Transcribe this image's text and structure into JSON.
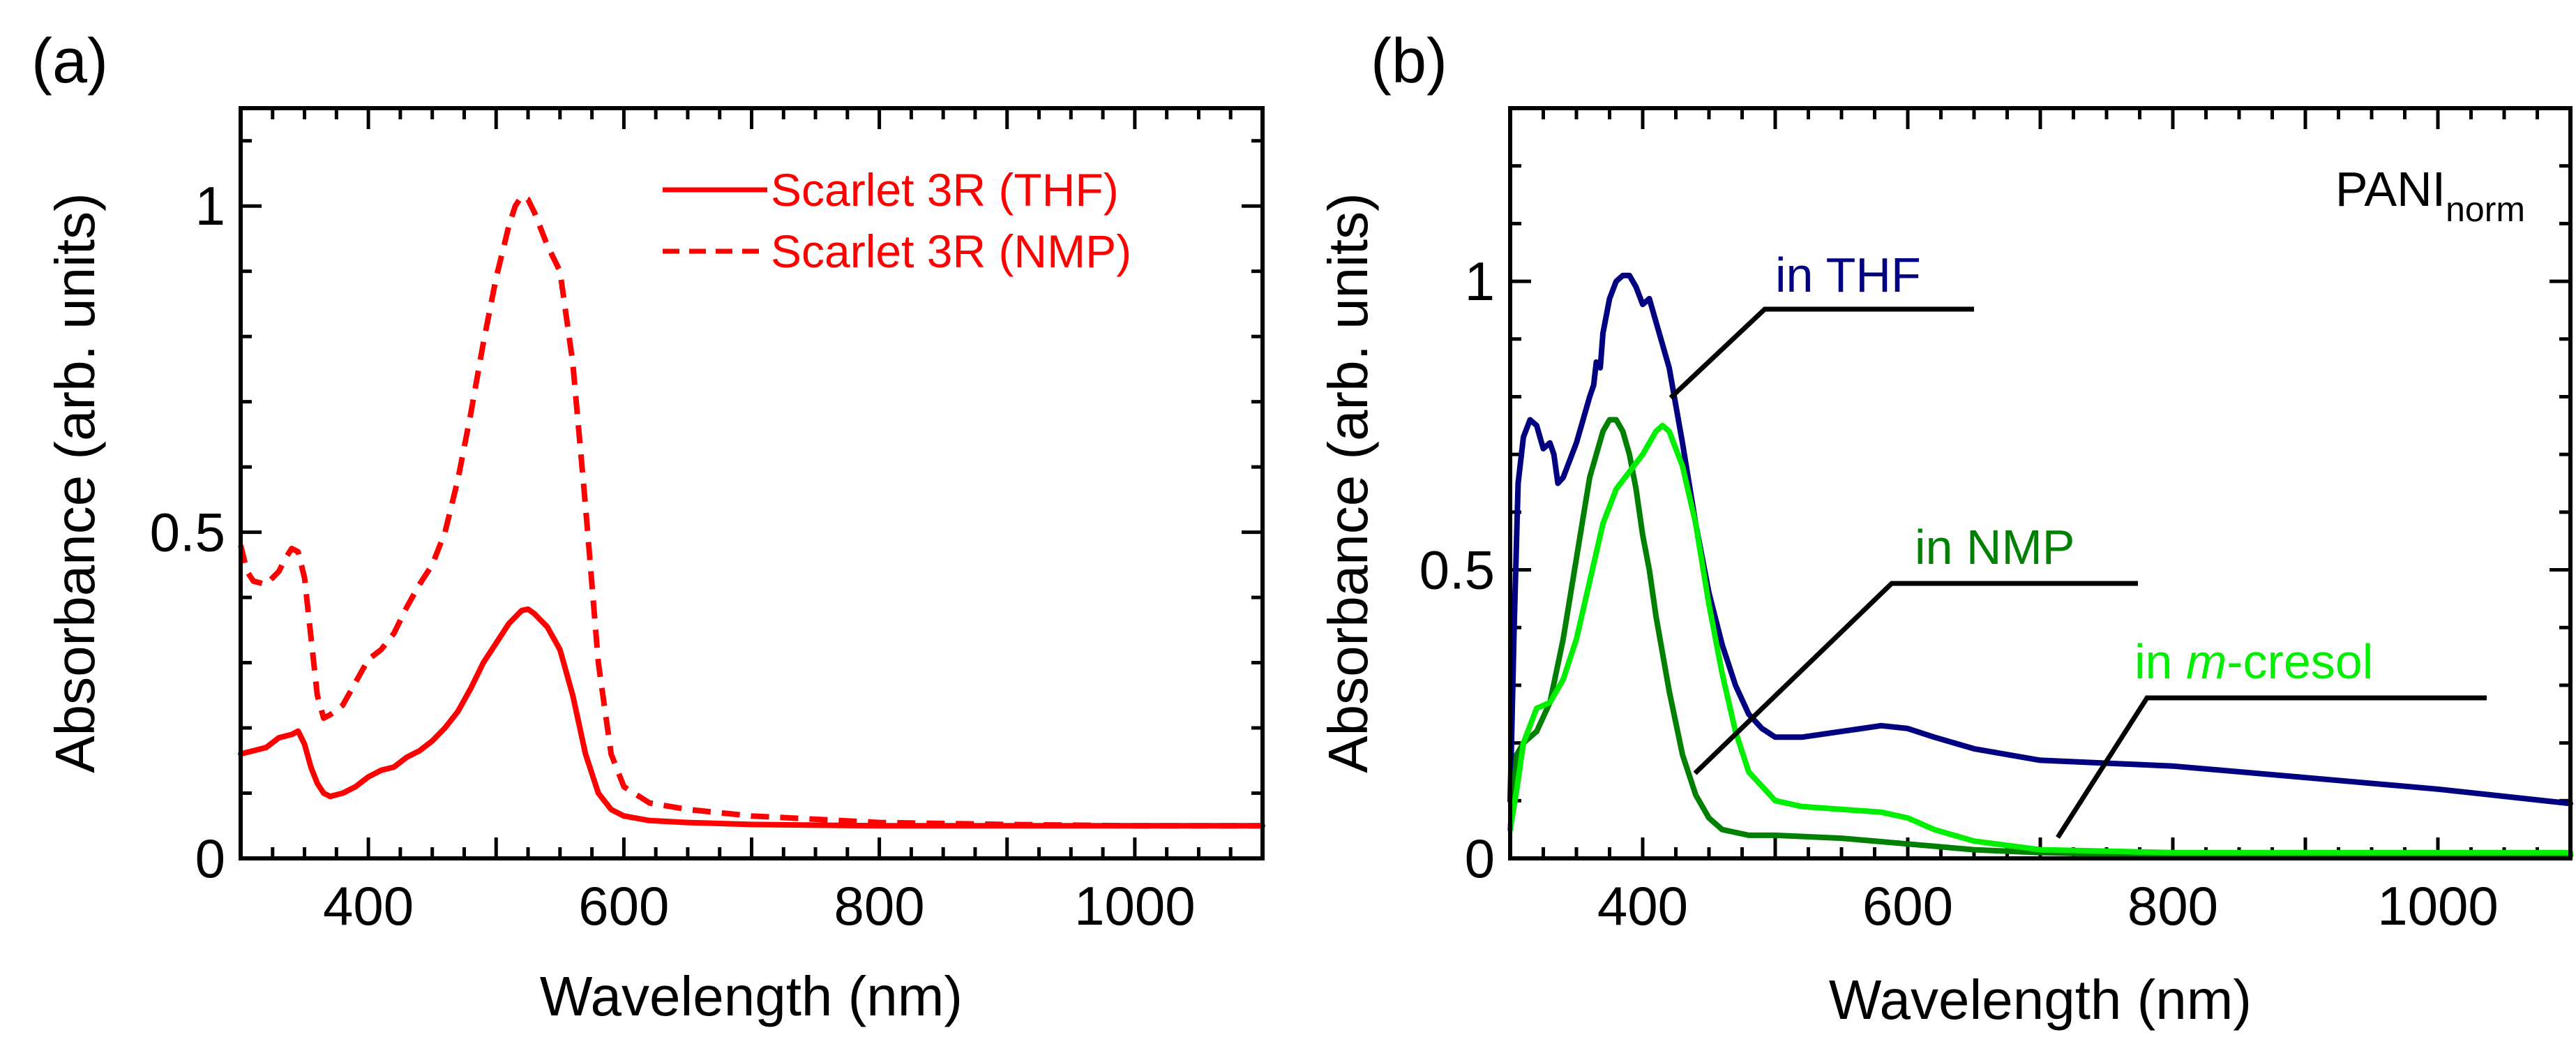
{
  "chart_data": [
    {
      "panel": "(a)",
      "type": "line",
      "xlabel": "Wavelength (nm)",
      "ylabel": "Absorbance (arb. units)",
      "xlim": [
        300,
        1100
      ],
      "ylim": [
        0,
        1.15
      ],
      "xticks": [
        400,
        600,
        800,
        1000
      ],
      "yticks": [
        0,
        0.5,
        1
      ],
      "ytick_labels": [
        "0",
        "0.5",
        "1"
      ],
      "legend": "top-right",
      "series": [
        {
          "name": "Scarlet 3R (THF)",
          "color": "#ff0000",
          "dash": "solid",
          "x": [
            300,
            310,
            320,
            330,
            340,
            345,
            350,
            355,
            360,
            365,
            370,
            380,
            390,
            400,
            410,
            420,
            430,
            440,
            450,
            460,
            470,
            480,
            490,
            500,
            510,
            520,
            525,
            530,
            540,
            550,
            560,
            570,
            580,
            590,
            600,
            620,
            650,
            700,
            800,
            900,
            1000,
            1100
          ],
          "y": [
            0.16,
            0.165,
            0.17,
            0.185,
            0.19,
            0.195,
            0.175,
            0.14,
            0.115,
            0.1,
            0.095,
            0.1,
            0.11,
            0.125,
            0.135,
            0.14,
            0.155,
            0.165,
            0.18,
            0.2,
            0.225,
            0.26,
            0.3,
            0.33,
            0.36,
            0.38,
            0.382,
            0.375,
            0.355,
            0.32,
            0.25,
            0.16,
            0.1,
            0.075,
            0.065,
            0.058,
            0.055,
            0.052,
            0.05,
            0.05,
            0.05,
            0.05
          ]
        },
        {
          "name": "Scarlet 3R (NMP)",
          "color": "#ff0000",
          "dash": "dashed",
          "x": [
            300,
            305,
            310,
            320,
            330,
            335,
            340,
            345,
            350,
            355,
            360,
            365,
            370,
            380,
            390,
            400,
            410,
            420,
            430,
            440,
            450,
            460,
            470,
            480,
            490,
            500,
            510,
            515,
            520,
            525,
            530,
            540,
            550,
            560,
            570,
            580,
            590,
            600,
            620,
            650,
            700,
            800,
            900,
            1000,
            1100
          ],
          "y": [
            0.48,
            0.44,
            0.425,
            0.42,
            0.44,
            0.46,
            0.475,
            0.47,
            0.43,
            0.34,
            0.25,
            0.215,
            0.22,
            0.235,
            0.27,
            0.305,
            0.32,
            0.345,
            0.385,
            0.42,
            0.45,
            0.5,
            0.58,
            0.68,
            0.79,
            0.89,
            0.97,
            1.0,
            1.015,
            1.01,
            0.99,
            0.94,
            0.9,
            0.76,
            0.54,
            0.3,
            0.16,
            0.11,
            0.085,
            0.075,
            0.065,
            0.055,
            0.052,
            0.05,
            0.05
          ]
        }
      ]
    },
    {
      "panel": "(b)",
      "type": "line",
      "xlabel": "Wavelength (nm)",
      "ylabel": "Absorbance (arb. units)",
      "xlim": [
        300,
        1100
      ],
      "ylim": [
        0,
        1.3
      ],
      "xticks": [
        400,
        600,
        800,
        1000
      ],
      "yticks": [
        0,
        0.5,
        1
      ],
      "ytick_labels": [
        "0",
        "0.5",
        "1"
      ],
      "annotation": {
        "main": "PANI",
        "sub": "norm"
      },
      "series": [
        {
          "name": "in THF",
          "label_plain": "in THF",
          "color": "#000080",
          "x": [
            300,
            303,
            306,
            310,
            315,
            320,
            325,
            330,
            333,
            336,
            340,
            345,
            350,
            355,
            360,
            363,
            365,
            368,
            370,
            375,
            380,
            385,
            390,
            395,
            400,
            405,
            410,
            420,
            430,
            440,
            450,
            460,
            470,
            480,
            490,
            500,
            520,
            550,
            580,
            600,
            620,
            650,
            700,
            800,
            900,
            1000,
            1100
          ],
          "y": [
            0.1,
            0.4,
            0.65,
            0.73,
            0.76,
            0.75,
            0.71,
            0.72,
            0.7,
            0.65,
            0.66,
            0.69,
            0.72,
            0.76,
            0.8,
            0.82,
            0.86,
            0.85,
            0.91,
            0.97,
            1.0,
            1.01,
            1.01,
            0.99,
            0.96,
            0.97,
            0.93,
            0.85,
            0.72,
            0.58,
            0.46,
            0.37,
            0.3,
            0.25,
            0.225,
            0.21,
            0.21,
            0.22,
            0.23,
            0.225,
            0.21,
            0.19,
            0.17,
            0.16,
            0.14,
            0.12,
            0.095
          ]
        },
        {
          "name": "in NMP",
          "label_plain": "in NMP",
          "color": "#008000",
          "x": [
            300,
            305,
            310,
            315,
            320,
            330,
            340,
            350,
            360,
            370,
            375,
            380,
            385,
            390,
            395,
            400,
            405,
            410,
            420,
            430,
            440,
            450,
            460,
            480,
            500,
            550,
            600,
            650,
            700,
            800,
            900,
            1000,
            1100
          ],
          "y": [
            0.05,
            0.18,
            0.2,
            0.21,
            0.22,
            0.27,
            0.38,
            0.52,
            0.66,
            0.74,
            0.76,
            0.76,
            0.74,
            0.7,
            0.64,
            0.56,
            0.5,
            0.42,
            0.29,
            0.18,
            0.11,
            0.07,
            0.05,
            0.04,
            0.04,
            0.035,
            0.025,
            0.015,
            0.01,
            0.005,
            0.005,
            0.005,
            0.005
          ]
        },
        {
          "name": "in m-cresol",
          "label_prefix": "in ",
          "label_italic": "m",
          "label_suffix": "-cresol",
          "color": "#00ee00",
          "x": [
            300,
            305,
            310,
            320,
            330,
            340,
            350,
            360,
            370,
            380,
            390,
            400,
            410,
            415,
            420,
            430,
            440,
            450,
            460,
            470,
            480,
            500,
            520,
            550,
            580,
            600,
            620,
            650,
            700,
            800,
            900,
            1000,
            1100
          ],
          "y": [
            0.05,
            0.12,
            0.2,
            0.26,
            0.27,
            0.31,
            0.38,
            0.48,
            0.58,
            0.64,
            0.67,
            0.7,
            0.74,
            0.75,
            0.74,
            0.68,
            0.58,
            0.44,
            0.32,
            0.22,
            0.15,
            0.1,
            0.09,
            0.085,
            0.08,
            0.07,
            0.05,
            0.03,
            0.015,
            0.01,
            0.01,
            0.01,
            0.01
          ]
        }
      ]
    }
  ]
}
